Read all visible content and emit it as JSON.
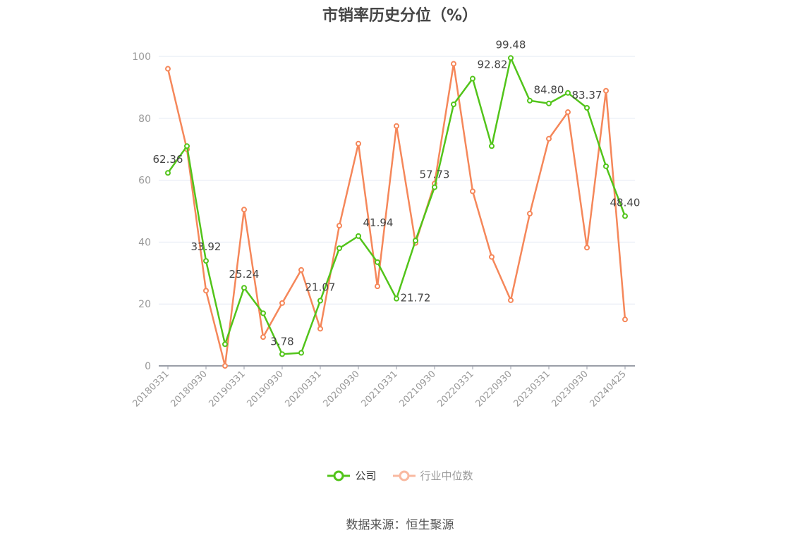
{
  "title": "市销率历史分位（%）",
  "legend": {
    "company_label": "公司",
    "industry_label": "行业中位数"
  },
  "source": "数据来源：恒生聚源",
  "colors": {
    "company": "#52c41a",
    "industry": "#f5875a",
    "industry_legend": "#f9b9a0",
    "grid": "#e3e8f3",
    "axis": "#9a9ea8",
    "tick_label": "#999999",
    "data_label": "#444444"
  },
  "chart_data": {
    "type": "line",
    "title": "市销率历史分位（%）",
    "xlabel": "",
    "ylabel": "",
    "ylim": [
      0,
      100
    ],
    "yticks": [
      0,
      20,
      40,
      60,
      80,
      100
    ],
    "grid": true,
    "legend_position": "bottom",
    "x_tick_labels": [
      "20180331",
      "20180930",
      "20190331",
      "20190930",
      "20200331",
      "20200930",
      "20210331",
      "20210930",
      "20220331",
      "20220930",
      "20230331",
      "20230930",
      "20240425"
    ],
    "x": [
      "20180331",
      "20180630",
      "20180930",
      "20181231",
      "20190331",
      "20190630",
      "20190930",
      "20191231",
      "20200331",
      "20200630",
      "20200930",
      "20201231",
      "20210331",
      "20210630",
      "20210930",
      "20211231",
      "20220331",
      "20220630",
      "20220930",
      "20221231",
      "20230331",
      "20230630",
      "20230930",
      "20231231",
      "20240425"
    ],
    "series": [
      {
        "name": "公司",
        "values": [
          62.36,
          71.0,
          33.92,
          7.0,
          25.24,
          17.0,
          3.78,
          4.2,
          21.07,
          38.0,
          41.94,
          33.5,
          21.72,
          40.5,
          57.73,
          84.5,
          92.82,
          71.0,
          99.48,
          85.7,
          84.8,
          88.2,
          83.37,
          64.5,
          48.4
        ],
        "labels": {
          "0": "62.36",
          "2": "33.92",
          "4": "25.24",
          "6": "3.78",
          "8": "21.07",
          "10": "41.94",
          "12": "21.72",
          "14": "57.73",
          "16": "92.82",
          "18": "99.48",
          "20": "84.80",
          "22": "83.37",
          "24": "48.40"
        }
      },
      {
        "name": "行业中位数",
        "values": [
          96.0,
          70.0,
          24.3,
          0.0,
          50.5,
          9.3,
          20.3,
          31.0,
          12.0,
          45.3,
          71.8,
          25.7,
          77.5,
          39.7,
          58.9,
          97.6,
          56.4,
          35.2,
          21.2,
          49.2,
          73.4,
          82.0,
          38.2,
          88.9,
          15.0
        ]
      }
    ]
  }
}
